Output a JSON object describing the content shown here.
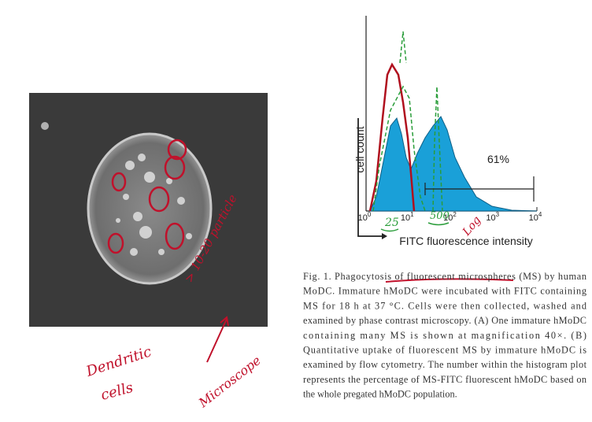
{
  "histogram": {
    "y_label": "cell count",
    "x_label": "FITC fluorescence intensity",
    "gate_label": "61%",
    "x_ticks": [
      {
        "base": "10",
        "exp": "0"
      },
      {
        "base": "10",
        "exp": "1"
      },
      {
        "base": "10",
        "exp": "2"
      },
      {
        "base": "10",
        "exp": "3"
      },
      {
        "base": "10",
        "exp": "4"
      }
    ]
  },
  "caption": {
    "lines": [
      "Fig. 1. Phagocytosis of fluorescent microspheres (MS) by human",
      "MoDC. Immature hMoDC were incubated with FITC containing",
      "MS for 18 h at 37 °C. Cells were then collected, washed and",
      "examined by phase contrast microscopy. (A) One immature hMoDC",
      "containing many MS is shown at magnification 40×. (B)",
      "Quantitative uptake of fluorescent MS by immature hMoDC is",
      "examined by flow cytometry. The number within the histogram plot",
      "represents the percentage of MS-FITC fluorescent hMoDC based on",
      "the whole pregated hMoDC population."
    ]
  },
  "annotations": {
    "particles": "> 10-20 particle",
    "dendritic": "Dendritic",
    "cells": "cells",
    "microscope": "Microscope",
    "mark_25": "25",
    "mark_500": "500",
    "log": "Log"
  }
}
